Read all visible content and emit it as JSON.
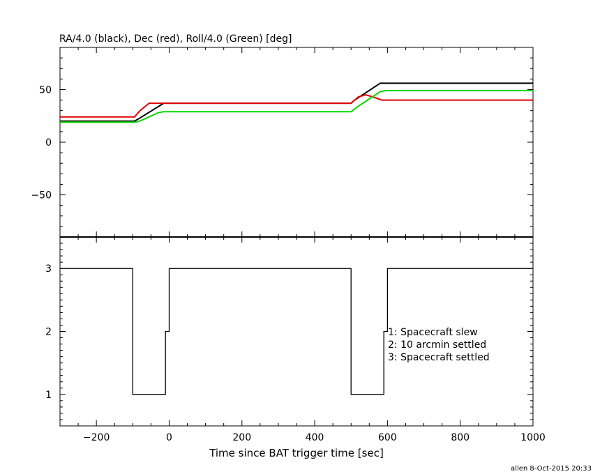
{
  "title": "RA/4.0 (black), Dec (red), Roll/4.0 (Green) [deg]",
  "footer": "allen  8-Oct-2015 20:33",
  "colors": {
    "ra": "#000000",
    "dec": "#e00000",
    "roll": "#00d800",
    "axes": "#000000"
  },
  "chart_data": [
    {
      "type": "line",
      "title": "RA/4.0 (black), Dec (red), Roll/4.0 (Green) [deg]",
      "xlim": [
        -300,
        1000
      ],
      "ylim": [
        -90,
        90
      ],
      "yticks": [
        -50,
        0,
        50
      ],
      "series": [
        {
          "name": "RA/4.0 (black)",
          "color": "#000000",
          "x": [
            -300,
            -95,
            -85,
            -15,
            -5,
            500,
            510,
            580,
            590,
            1000
          ],
          "y": [
            20,
            20,
            22,
            37,
            37,
            37,
            40,
            56,
            56,
            56
          ]
        },
        {
          "name": "Dec (red)",
          "color": "#e00000",
          "x": [
            -300,
            -95,
            -80,
            -55,
            -30,
            500,
            520,
            540,
            560,
            585,
            600,
            1000
          ],
          "y": [
            24,
            24,
            30,
            37,
            37,
            37,
            43,
            45,
            43,
            40,
            40,
            40
          ]
        },
        {
          "name": "Roll/4.0 (Green)",
          "color": "#00d800",
          "x": [
            -300,
            -90,
            -75,
            -30,
            -15,
            500,
            515,
            580,
            595,
            1000
          ],
          "y": [
            19,
            19,
            21,
            28,
            29,
            29,
            33,
            48,
            49,
            49
          ]
        }
      ]
    },
    {
      "type": "line",
      "xlabel": "Time since BAT trigger time [sec]",
      "xlim": [
        -300,
        1000
      ],
      "ylim": [
        0.5,
        3.5
      ],
      "xticks": [
        -200,
        0,
        200,
        400,
        600,
        800,
        1000
      ],
      "xtick_labels": [
        "−200",
        "0",
        "200",
        "400",
        "600",
        "800",
        "1000"
      ],
      "yticks": [
        1,
        2,
        3
      ],
      "annotations": [
        "1: Spacecraft slew",
        "2: 10 arcmin settled",
        "3: Spacecraft settled"
      ],
      "series": [
        {
          "color": "#000000",
          "x": [
            -300,
            -100,
            -100,
            -10,
            -10,
            0,
            0,
            500,
            500,
            590,
            590,
            600,
            600,
            1000
          ],
          "y": [
            3,
            3,
            1,
            1,
            2,
            2,
            3,
            3,
            1,
            1,
            2,
            2,
            3,
            3
          ]
        }
      ]
    }
  ]
}
